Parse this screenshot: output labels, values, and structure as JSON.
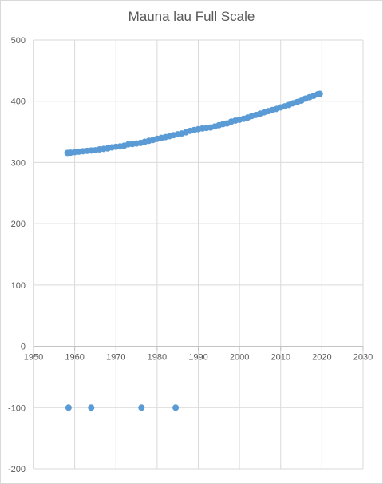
{
  "chart_data": {
    "type": "scatter",
    "title": "Mauna lau Full Scale",
    "xlabel": "",
    "ylabel": "",
    "xlim": [
      1950,
      2030
    ],
    "ylim": [
      -200,
      500
    ],
    "x_ticks": [
      1950,
      1960,
      1970,
      1980,
      1990,
      2000,
      2010,
      2020,
      2030
    ],
    "y_ticks": [
      -200,
      -100,
      0,
      100,
      200,
      300,
      400,
      500
    ],
    "grid": true,
    "legend": "none",
    "marker_color": "#5b9bd5",
    "series": [
      {
        "x": [
          1958.25,
          1959,
          1960,
          1961,
          1962,
          1963,
          1964,
          1965,
          1966,
          1967,
          1968,
          1969,
          1970,
          1971,
          1972,
          1973,
          1974,
          1975,
          1976,
          1977,
          1978,
          1979,
          1980,
          1981,
          1982,
          1983,
          1984,
          1985,
          1986,
          1987,
          1988,
          1989,
          1990,
          1991,
          1992,
          1993,
          1994,
          1995,
          1996,
          1997,
          1998,
          1999,
          2000,
          2001,
          2002,
          2003,
          2004,
          2005,
          2006,
          2007,
          2008,
          2009,
          2010,
          2011,
          2012,
          2013,
          2014,
          2015,
          2016,
          2017,
          2018,
          2019,
          2019.5,
          1958.5,
          1964,
          1976.2,
          1984.5
        ],
        "y": [
          315.7,
          316.0,
          316.9,
          317.6,
          318.4,
          319.0,
          319.6,
          320.0,
          321.4,
          322.2,
          323.0,
          324.6,
          325.7,
          326.3,
          327.5,
          329.7,
          330.2,
          331.1,
          332.0,
          333.8,
          335.4,
          336.8,
          338.7,
          340.1,
          341.4,
          343.0,
          344.6,
          346.0,
          347.4,
          349.2,
          351.6,
          353.1,
          354.4,
          355.6,
          356.4,
          357.1,
          358.8,
          360.8,
          362.6,
          363.7,
          366.7,
          368.4,
          369.7,
          371.3,
          373.4,
          375.9,
          377.7,
          379.8,
          381.9,
          383.8,
          385.6,
          387.4,
          389.9,
          391.7,
          393.9,
          396.5,
          398.6,
          400.8,
          404.2,
          406.5,
          408.7,
          411.4,
          412.0,
          -100,
          -100,
          -100,
          -100
        ]
      }
    ]
  }
}
